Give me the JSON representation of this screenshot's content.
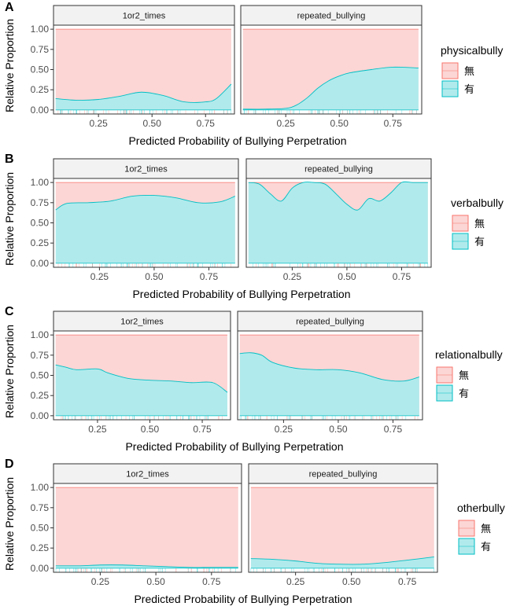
{
  "figure": {
    "ylabel": "Relative Proportion",
    "xlabel": "Predicted Probability of Bullying Perpetration",
    "colors": {
      "none": "#FBD6D5",
      "none_line": "#F8766D",
      "yes": "#B1EAEC",
      "yes_line": "#00BFC4",
      "strip_bg": "#F2F2F2"
    }
  },
  "chart_data": [
    {
      "type": "area",
      "panel_label": "A",
      "legend_title": "physicalbully",
      "legend": [
        "無",
        "有"
      ],
      "xlim": [
        0.04,
        0.885
      ],
      "ylim": [
        -0.05,
        1.05
      ],
      "x_ticks": [
        "0.25",
        "0.50",
        "0.75"
      ],
      "y_ticks": [
        "0.00",
        "0.25",
        "0.50",
        "0.75",
        "1.00"
      ],
      "facets": [
        {
          "strip": "1or2_times",
          "x": [
            0.05,
            0.15,
            0.25,
            0.35,
            0.45,
            0.55,
            0.65,
            0.75,
            0.8,
            0.87
          ],
          "yes": [
            0.14,
            0.12,
            0.13,
            0.17,
            0.22,
            0.18,
            0.1,
            0.1,
            0.14,
            0.32
          ]
        },
        {
          "strip": "repeated_bullying",
          "x": [
            0.05,
            0.15,
            0.25,
            0.3,
            0.35,
            0.4,
            0.45,
            0.5,
            0.55,
            0.65,
            0.75,
            0.87
          ],
          "yes": [
            0.01,
            0.01,
            0.02,
            0.06,
            0.15,
            0.27,
            0.36,
            0.42,
            0.46,
            0.5,
            0.53,
            0.52
          ]
        }
      ]
    },
    {
      "type": "area",
      "panel_label": "B",
      "legend_title": "verbalbully",
      "legend": [
        "無",
        "有"
      ],
      "xlim": [
        0.04,
        0.885
      ],
      "ylim": [
        -0.05,
        1.05
      ],
      "x_ticks": [
        "0.25",
        "0.50",
        "0.75"
      ],
      "y_ticks": [
        "0.00",
        "0.25",
        "0.50",
        "0.75",
        "1.00"
      ],
      "facets": [
        {
          "strip": "1or2_times",
          "x": [
            0.05,
            0.1,
            0.2,
            0.3,
            0.4,
            0.5,
            0.6,
            0.7,
            0.8,
            0.87
          ],
          "yes": [
            0.66,
            0.74,
            0.75,
            0.77,
            0.83,
            0.84,
            0.81,
            0.75,
            0.76,
            0.83
          ]
        },
        {
          "strip": "repeated_bullying",
          "x": [
            0.05,
            0.1,
            0.15,
            0.2,
            0.25,
            0.3,
            0.35,
            0.4,
            0.45,
            0.5,
            0.55,
            0.6,
            0.65,
            0.7,
            0.75,
            0.8,
            0.87
          ],
          "yes": [
            1.0,
            0.98,
            0.86,
            0.77,
            0.93,
            1.0,
            1.0,
            0.98,
            0.86,
            0.73,
            0.66,
            0.8,
            0.77,
            0.87,
            1.0,
            1.0,
            1.0
          ]
        }
      ]
    },
    {
      "type": "area",
      "panel_label": "C",
      "legend_title": "relationalbully",
      "legend": [
        "無",
        "有"
      ],
      "xlim": [
        0.04,
        0.885
      ],
      "ylim": [
        -0.05,
        1.05
      ],
      "x_ticks": [
        "0.25",
        "0.50",
        "0.75"
      ],
      "y_ticks": [
        "0.00",
        "0.25",
        "0.50",
        "0.75",
        "1.00"
      ],
      "facets": [
        {
          "strip": "1or2_times",
          "x": [
            0.05,
            0.1,
            0.15,
            0.25,
            0.3,
            0.4,
            0.5,
            0.6,
            0.7,
            0.8,
            0.87
          ],
          "yes": [
            0.63,
            0.6,
            0.57,
            0.58,
            0.53,
            0.46,
            0.44,
            0.43,
            0.41,
            0.41,
            0.29
          ]
        },
        {
          "strip": "repeated_bullying",
          "x": [
            0.05,
            0.1,
            0.15,
            0.2,
            0.3,
            0.4,
            0.5,
            0.6,
            0.7,
            0.8,
            0.87
          ],
          "yes": [
            0.77,
            0.78,
            0.75,
            0.66,
            0.59,
            0.57,
            0.57,
            0.53,
            0.45,
            0.43,
            0.48
          ]
        }
      ]
    },
    {
      "type": "area",
      "panel_label": "D",
      "legend_title": "otherbully",
      "legend": [
        "無",
        "有"
      ],
      "xlim": [
        0.04,
        0.885
      ],
      "ylim": [
        -0.05,
        1.05
      ],
      "x_ticks": [
        "0.25",
        "0.50",
        "0.75"
      ],
      "y_ticks": [
        "0.00",
        "0.25",
        "0.50",
        "0.75",
        "1.00"
      ],
      "facets": [
        {
          "strip": "1or2_times",
          "x": [
            0.05,
            0.15,
            0.25,
            0.35,
            0.45,
            0.55,
            0.65,
            0.75,
            0.87
          ],
          "yes": [
            0.03,
            0.03,
            0.04,
            0.04,
            0.03,
            0.02,
            0.01,
            0.01,
            0.01
          ]
        },
        {
          "strip": "repeated_bullying",
          "x": [
            0.05,
            0.15,
            0.25,
            0.35,
            0.45,
            0.55,
            0.65,
            0.75,
            0.87
          ],
          "yes": [
            0.12,
            0.11,
            0.09,
            0.06,
            0.05,
            0.05,
            0.07,
            0.1,
            0.14
          ]
        }
      ]
    }
  ]
}
